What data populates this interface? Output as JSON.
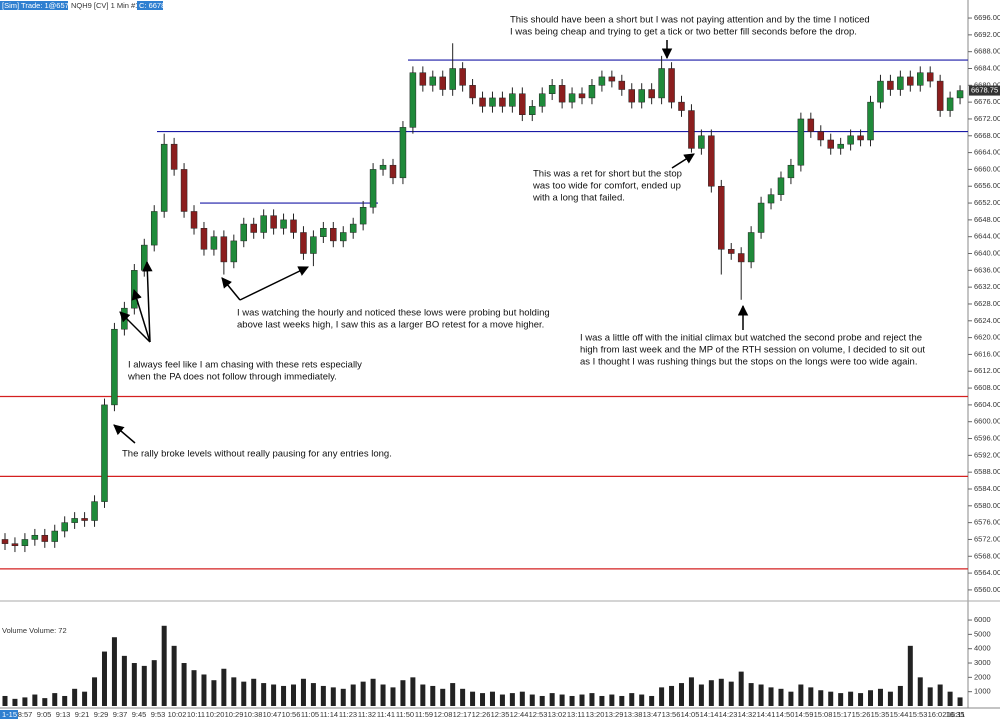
{
  "chart_data": {
    "type": "candlestick",
    "header": {
      "trade": "[Sim]  Trade: 1@6578.50",
      "symbol": "NQH9 [CV]  1 Min  #1",
      "last": "C: 6678.75"
    },
    "date_label": "1-15",
    "time_labels": [
      "8:57",
      "9:05",
      "9:13",
      "9:21",
      "9:29",
      "9:37",
      "9:45",
      "9:53",
      "10:02",
      "10:11",
      "10:20",
      "10:29",
      "10:38",
      "10:47",
      "10:56",
      "11:05",
      "11:14",
      "11:23",
      "11:32",
      "11:41",
      "11:50",
      "11:59",
      "12:08",
      "12:17",
      "12:26",
      "12:35",
      "12:44",
      "12:53",
      "13:02",
      "13:11",
      "13:20",
      "13:29",
      "13:38",
      "13:47",
      "13:56",
      "14:05",
      "14:14",
      "14:23",
      "14:32",
      "14:41",
      "14:50",
      "14:59",
      "15:08",
      "15:17",
      "15:26",
      "15:35",
      "15:44",
      "15:53",
      "16:02",
      "16:11",
      "16:35"
    ],
    "open": [
      6572,
      6571,
      6570.5,
      6572,
      6573,
      6571.5,
      6574,
      6576,
      6577,
      6576.5,
      6581,
      6604,
      6622,
      6627,
      6636,
      6642,
      6650,
      6666,
      6660,
      6650,
      6646,
      6641,
      6644,
      6638,
      6643,
      6647,
      6645,
      6649,
      6646,
      6648,
      6645,
      6640,
      6644,
      6646,
      6643,
      6645,
      6647,
      6651,
      6660,
      6661,
      6658,
      6670,
      6683,
      6680,
      6682,
      6679,
      6684,
      6680,
      6677,
      6675,
      6677,
      6675,
      6678,
      6673,
      6675,
      6678,
      6680,
      6676,
      6678,
      6677,
      6680,
      6682,
      6681,
      6679,
      6676,
      6679,
      6677,
      6684,
      6676,
      6674,
      6665,
      6668,
      6656,
      6641,
      6640,
      6638,
      6645,
      6652,
      6654,
      6658,
      6661,
      6672,
      6669,
      6667,
      6665,
      6666,
      6668,
      6667,
      6676,
      6681,
      6679,
      6682,
      6680,
      6683,
      6681,
      6674,
      6677
    ],
    "high": [
      6573.5,
      6572.5,
      6573.5,
      6574.5,
      6574.5,
      6575.5,
      6577.5,
      6578.5,
      6578.5,
      6582.5,
      6605.5,
      6623.5,
      6628.5,
      6637.5,
      6643.5,
      6651.5,
      6668.5,
      6667.5,
      6661.5,
      6651.5,
      6647.5,
      6645.5,
      6645.5,
      6644.5,
      6648.5,
      6648.5,
      6650.5,
      6650.5,
      6649.5,
      6649.5,
      6646.5,
      6645.5,
      6647.5,
      6647.5,
      6646.5,
      6648.5,
      6652.5,
      6661.5,
      6662.5,
      6662.5,
      6671.5,
      6684.5,
      6684.5,
      6683.5,
      6683.5,
      6690,
      6685.5,
      6681.5,
      6678.5,
      6678.5,
      6678.5,
      6679.5,
      6679.5,
      6676.5,
      6679.5,
      6681.5,
      6681.5,
      6679.5,
      6679.5,
      6681.5,
      6683.5,
      6683.5,
      6682.5,
      6680.5,
      6680.5,
      6680.5,
      6687,
      6685.5,
      6677.5,
      6675.5,
      6669.5,
      6669.5,
      6657.5,
      6642.5,
      6641.5,
      6646.5,
      6653.5,
      6655.5,
      6659.5,
      6662.5,
      6673.5,
      6673.5,
      6670.5,
      6668.5,
      6667.5,
      6669.5,
      6669.5,
      6677.5,
      6682.5,
      6682.5,
      6683.5,
      6683.5,
      6684.5,
      6684.5,
      6682.5,
      6678.5,
      6680
    ],
    "low": [
      6569.5,
      6569,
      6569,
      6570.5,
      6570,
      6570,
      6572.5,
      6574.5,
      6575,
      6575,
      6579.5,
      6602.5,
      6620.5,
      6625.5,
      6634.5,
      6640.5,
      6648.5,
      6658.5,
      6648.5,
      6644.5,
      6639.5,
      6639.5,
      6635,
      6636.5,
      6641.5,
      6643.5,
      6643.5,
      6644.5,
      6644.5,
      6643.5,
      6638.5,
      6637,
      6642.5,
      6641.5,
      6641.5,
      6643.5,
      6645.5,
      6649.5,
      6658.5,
      6656.5,
      6656.5,
      6668.5,
      6678.5,
      6678.5,
      6677.5,
      6677.5,
      6678.5,
      6675.5,
      6673.5,
      6673.5,
      6673.5,
      6673.5,
      6671.5,
      6671.5,
      6673.5,
      6676.5,
      6674.5,
      6674.5,
      6675.5,
      6675.5,
      6678.5,
      6679.5,
      6677.5,
      6674.5,
      6674.5,
      6675.5,
      6675.5,
      6674.5,
      6672.5,
      6664,
      6663.5,
      6654.5,
      6635,
      6638.5,
      6629,
      6636.5,
      6643.5,
      6650.5,
      6652.5,
      6656.5,
      6659.5,
      6667.5,
      6665.5,
      6663.5,
      6663.5,
      6664.5,
      6665.5,
      6665.5,
      6674.5,
      6677.5,
      6677.5,
      6678.5,
      6678.5,
      6679.5,
      6672.5,
      6672.5,
      6675.5
    ],
    "close": [
      6571,
      6570.5,
      6572,
      6573,
      6571.5,
      6574,
      6576,
      6577,
      6576.5,
      6581,
      6604,
      6622,
      6627,
      6636,
      6642,
      6650,
      6666,
      6660,
      6650,
      6646,
      6641,
      6644,
      6638,
      6643,
      6647,
      6645,
      6649,
      6646,
      6648,
      6645,
      6640,
      6644,
      6646,
      6643,
      6645,
      6647,
      6651,
      6660,
      6661,
      6658,
      6670,
      6683,
      6680,
      6682,
      6679,
      6684,
      6680,
      6677,
      6675,
      6677,
      6675,
      6678,
      6673,
      6675,
      6678,
      6680,
      6676,
      6678,
      6677,
      6680,
      6682,
      6681,
      6679,
      6676,
      6679,
      6677,
      6684,
      6676,
      6674,
      6665,
      6668,
      6656,
      6641,
      6640,
      6638,
      6645,
      6652,
      6654,
      6658,
      6661,
      6672,
      6669,
      6667,
      6665,
      6666,
      6668,
      6667,
      6676,
      6681,
      6679,
      6682,
      6680,
      6683,
      6681,
      6674,
      6677,
      6678.75
    ],
    "up_color": "#1f8a3a",
    "down_color": "#8b1e1e",
    "ylim": [
      6557.6,
      6699.1
    ],
    "yticks": [
      {
        "value": 6560,
        "label": "6560.00"
      },
      {
        "value": 6564,
        "label": "6564.00"
      },
      {
        "value": 6568,
        "label": "6568.00"
      },
      {
        "value": 6572,
        "label": "6572.00"
      },
      {
        "value": 6576,
        "label": "6576.00"
      },
      {
        "value": 6580,
        "label": "6580.00"
      },
      {
        "value": 6584,
        "label": "6584.00"
      },
      {
        "value": 6588,
        "label": "6588.00"
      },
      {
        "value": 6592,
        "label": "6592.00"
      },
      {
        "value": 6596,
        "label": "6596.00"
      },
      {
        "value": 6600,
        "label": "6600.00"
      },
      {
        "value": 6604,
        "label": "6604.00"
      },
      {
        "value": 6608,
        "label": "6608.00"
      },
      {
        "value": 6612,
        "label": "6612.00"
      },
      {
        "value": 6616,
        "label": "6616.00"
      },
      {
        "value": 6620,
        "label": "6620.00"
      },
      {
        "value": 6624,
        "label": "6624.00"
      },
      {
        "value": 6628,
        "label": "6628.00"
      },
      {
        "value": 6632,
        "label": "6632.00"
      },
      {
        "value": 6636,
        "label": "6636.00"
      },
      {
        "value": 6640,
        "label": "6640.00"
      },
      {
        "value": 6644,
        "label": "6644.00"
      },
      {
        "value": 6648,
        "label": "6648.00"
      },
      {
        "value": 6652,
        "label": "6652.00"
      },
      {
        "value": 6656,
        "label": "6656.00"
      },
      {
        "value": 6660,
        "label": "6660.00"
      },
      {
        "value": 6664,
        "label": "6664.00"
      },
      {
        "value": 6668,
        "label": "6668.00"
      },
      {
        "value": 6672,
        "label": "6672.00"
      },
      {
        "value": 6676,
        "label": "6676.00"
      },
      {
        "value": 6680,
        "label": "6680.00"
      },
      {
        "value": 6684,
        "label": "6684.00"
      },
      {
        "value": 6688,
        "label": "6688.00"
      },
      {
        "value": 6692,
        "label": "6692.00"
      },
      {
        "value": 6696,
        "label": "6696.00"
      }
    ],
    "last_price": {
      "value": 6678.75,
      "label": "6678.75"
    },
    "levels": [
      {
        "value": 6686,
        "color": "#1a1aa6"
      },
      {
        "value": 6669,
        "color": "#1a1aa6"
      },
      {
        "value": 6652,
        "color": "#1a1aa6"
      },
      {
        "value": 6606,
        "color": "#d42020"
      },
      {
        "value": 6587,
        "color": "#d42020"
      },
      {
        "value": 6565,
        "color": "#d42020"
      }
    ],
    "volume": {
      "title": "Volume  Volume: 72",
      "color": "#222",
      "values": [
        700,
        500,
        600,
        800,
        550,
        900,
        700,
        1200,
        1000,
        2000,
        3800,
        4800,
        3500,
        3000,
        2800,
        3200,
        5600,
        4200,
        3000,
        2500,
        2200,
        1800,
        2600,
        2000,
        1700,
        1900,
        1600,
        1500,
        1400,
        1500,
        1900,
        1600,
        1400,
        1300,
        1200,
        1500,
        1700,
        1900,
        1500,
        1300,
        1800,
        2000,
        1500,
        1400,
        1200,
        1600,
        1200,
        1000,
        900,
        1000,
        800,
        900,
        1000,
        800,
        700,
        900,
        800,
        700,
        800,
        900,
        700,
        800,
        700,
        900,
        800,
        700,
        1300,
        1400,
        1600,
        2000,
        1500,
        1800,
        1900,
        1700,
        2400,
        1600,
        1500,
        1300,
        1200,
        1000,
        1500,
        1300,
        1100,
        1000,
        900,
        1000,
        900,
        1100,
        1200,
        1000,
        1400,
        4200,
        2000,
        1300,
        1500,
        1000,
        600
      ],
      "ylim": [
        0,
        7260
      ],
      "yticks": [
        1000,
        2000,
        3000,
        4000,
        5000,
        6000
      ]
    },
    "annotations": [
      {
        "lines": [
          "This should have been a short but I was not paying attention and by the time I noticed",
          "I was being cheap and trying to get a tick or two better fill seconds before the drop."
        ]
      },
      {
        "lines": [
          "This was a ret for short but the stop",
          "was too wide for comfort, ended up",
          "with a long that failed."
        ]
      },
      {
        "lines": [
          "I was watching the hourly and noticed these lows were probing but holding",
          "above last weeks high, I saw this as a larger BO retest for a move higher."
        ]
      },
      {
        "lines": [
          "I was a little off with the initial climax but watched the second probe and reject the",
          "high from last week and the MP of the RTH session on volume, I decided to sit out",
          "as I thought I was rushing things but the stops on the longs were too wide again."
        ]
      },
      {
        "lines": [
          "I always feel like I am chasing with these rets especially",
          "when the PA does not follow through immediately."
        ]
      },
      {
        "lines": [
          "The rally broke levels without really pausing for any entries long."
        ]
      }
    ]
  }
}
